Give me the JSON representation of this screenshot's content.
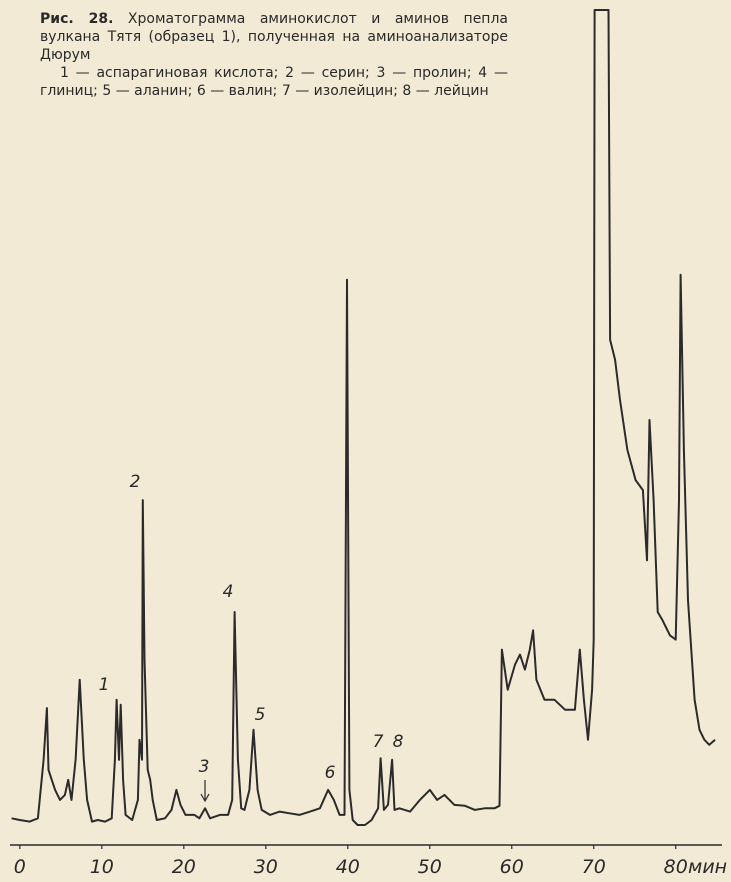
{
  "chart_data": {
    "type": "line",
    "figure_label": "Рис. 28.",
    "title": "Хроматограмма аминокислот и аминов пепла вулкана Тятя (образец 1), полученная на аминоанализаторе Дюрум",
    "legend_text": "1 — аспарагиновая кислота; 2 — серин; 3 — пролин; 4 — глиниц; 5 — аланин; 6 — валин; 7 — изолейцин; 8 — лейцин",
    "xlabel": "мин",
    "peak_labels": [
      "1",
      "2",
      "3",
      "4",
      "5",
      "6",
      "7",
      "8"
    ],
    "xlim": [
      -1.2,
      85.4
    ],
    "xticks": [
      0,
      10,
      20,
      30,
      40,
      50,
      60,
      70,
      80
    ],
    "ylim": [
      0,
      100
    ],
    "color": "#2b2b2b",
    "x": [
      -1.0,
      0,
      1.2,
      2.2,
      2.9,
      3.3,
      3.5,
      4.3,
      4.9,
      5.5,
      5.9,
      6.3,
      6.8,
      7.3,
      7.8,
      8.2,
      8.8,
      9.5,
      10.4,
      11.2,
      11.6,
      11.8,
      12.1,
      12.3,
      12.6,
      12.9,
      13.7,
      14.4,
      14.6,
      14.9,
      15.0,
      15.2,
      15.6,
      15.9,
      16.2,
      16.7,
      17.7,
      18.5,
      19.1,
      19.6,
      20.2,
      21.3,
      21.9,
      22.6,
      23.2,
      24.4,
      25.4,
      25.9,
      26.2,
      26.6,
      27.0,
      27.4,
      28.0,
      28.5,
      29.0,
      29.5,
      30.5,
      31.7,
      32.9,
      34.1,
      35.4,
      36.6,
      37.6,
      38.3,
      39.0,
      39.6,
      39.9,
      40.2,
      40.6,
      41.2,
      42.1,
      42.9,
      43.7,
      44.0,
      44.4,
      44.9,
      45.4,
      45.7,
      46.3,
      47.6,
      48.8,
      50.0,
      50.9,
      51.8,
      53.0,
      54.3,
      55.5,
      56.7,
      57.9,
      58.5,
      58.8,
      59.5,
      60.4,
      61.0,
      61.6,
      62.2,
      62.6,
      63.0,
      64.0,
      65.2,
      66.5,
      67.7,
      68.3,
      68.8,
      69.3,
      69.8,
      70.0,
      70.1,
      71.8,
      72.0,
      72.6,
      73.2,
      74.1,
      75.1,
      76.0,
      76.5,
      76.8,
      77.3,
      77.8,
      78.4,
      79.3,
      80.0,
      80.4,
      80.6,
      81.0,
      81.5,
      82.3,
      82.9,
      83.5,
      84.1,
      84.8
    ],
    "values": [
      3.2,
      3.0,
      2.8,
      3.2,
      10.2,
      16.4,
      9.0,
      6.6,
      5.4,
      6.0,
      7.8,
      5.4,
      10.2,
      19.8,
      10.2,
      5.4,
      2.8,
      3.0,
      2.8,
      3.2,
      10.2,
      17.4,
      10.2,
      16.8,
      7.8,
      3.6,
      3.0,
      5.4,
      12.6,
      10.2,
      41.3,
      22.2,
      9.0,
      7.8,
      5.4,
      3.0,
      3.2,
      4.2,
      6.6,
      4.8,
      3.6,
      3.6,
      3.2,
      4.4,
      3.2,
      3.6,
      3.6,
      5.4,
      27.9,
      10.2,
      4.4,
      4.2,
      6.6,
      13.8,
      6.6,
      4.2,
      3.6,
      4.0,
      3.8,
      3.6,
      4.0,
      4.4,
      6.6,
      5.4,
      3.6,
      3.6,
      67.7,
      6.6,
      3.0,
      2.4,
      2.4,
      3.0,
      4.4,
      10.4,
      4.2,
      4.8,
      10.2,
      4.2,
      4.4,
      4.0,
      5.4,
      6.6,
      5.4,
      6.0,
      4.8,
      4.7,
      4.2,
      4.4,
      4.4,
      4.7,
      23.4,
      18.6,
      21.6,
      22.8,
      21.0,
      23.4,
      25.7,
      19.8,
      17.4,
      17.4,
      16.2,
      16.2,
      23.4,
      17.4,
      12.6,
      18.6,
      24.6,
      100,
      100,
      60.5,
      58.1,
      53.3,
      47.3,
      43.7,
      42.5,
      34.1,
      50.9,
      41.3,
      27.9,
      26.9,
      25.1,
      24.6,
      41.3,
      68.3,
      47.3,
      29.3,
      17.4,
      13.8,
      12.6,
      12.0,
      12.6
    ]
  }
}
